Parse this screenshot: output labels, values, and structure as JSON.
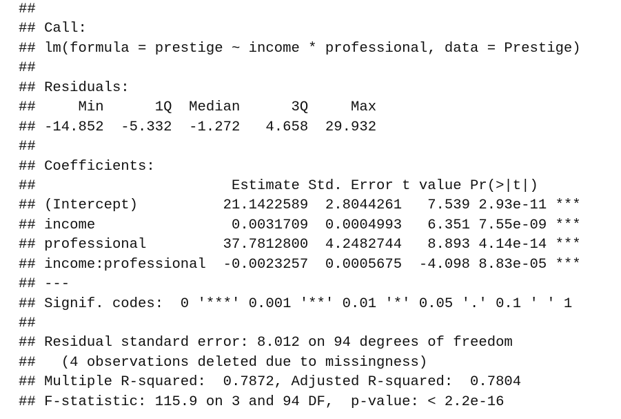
{
  "lines": [
    "##",
    "## Call:",
    "## lm(formula = prestige ~ income * professional, data = Prestige)",
    "##",
    "## Residuals:",
    "##     Min      1Q  Median      3Q     Max ",
    "## -14.852  -5.332  -1.272   4.658  29.932 ",
    "##",
    "## Coefficients:",
    "##                       Estimate Std. Error t value Pr(>|t|)    ",
    "## (Intercept)          21.1422589  2.8044261   7.539 2.93e-11 ***",
    "## income                0.0031709  0.0004993   6.351 7.55e-09 ***",
    "## professional         37.7812800  4.2482744   8.893 4.14e-14 ***",
    "## income:professional  -0.0023257  0.0005675  -4.098 8.83e-05 ***",
    "## ---",
    "## Signif. codes:  0 '***' 0.001 '**' 0.01 '*' 0.05 '.' 0.1 ' ' 1",
    "##",
    "## Residual standard error: 8.012 on 94 degrees of freedom",
    "##   (4 observations deleted due to missingness)",
    "## Multiple R-squared:  0.7872, Adjusted R-squared:  0.7804 ",
    "## F-statistic: 115.9 on 3 and 94 DF,  p-value: < 2.2e-16"
  ]
}
